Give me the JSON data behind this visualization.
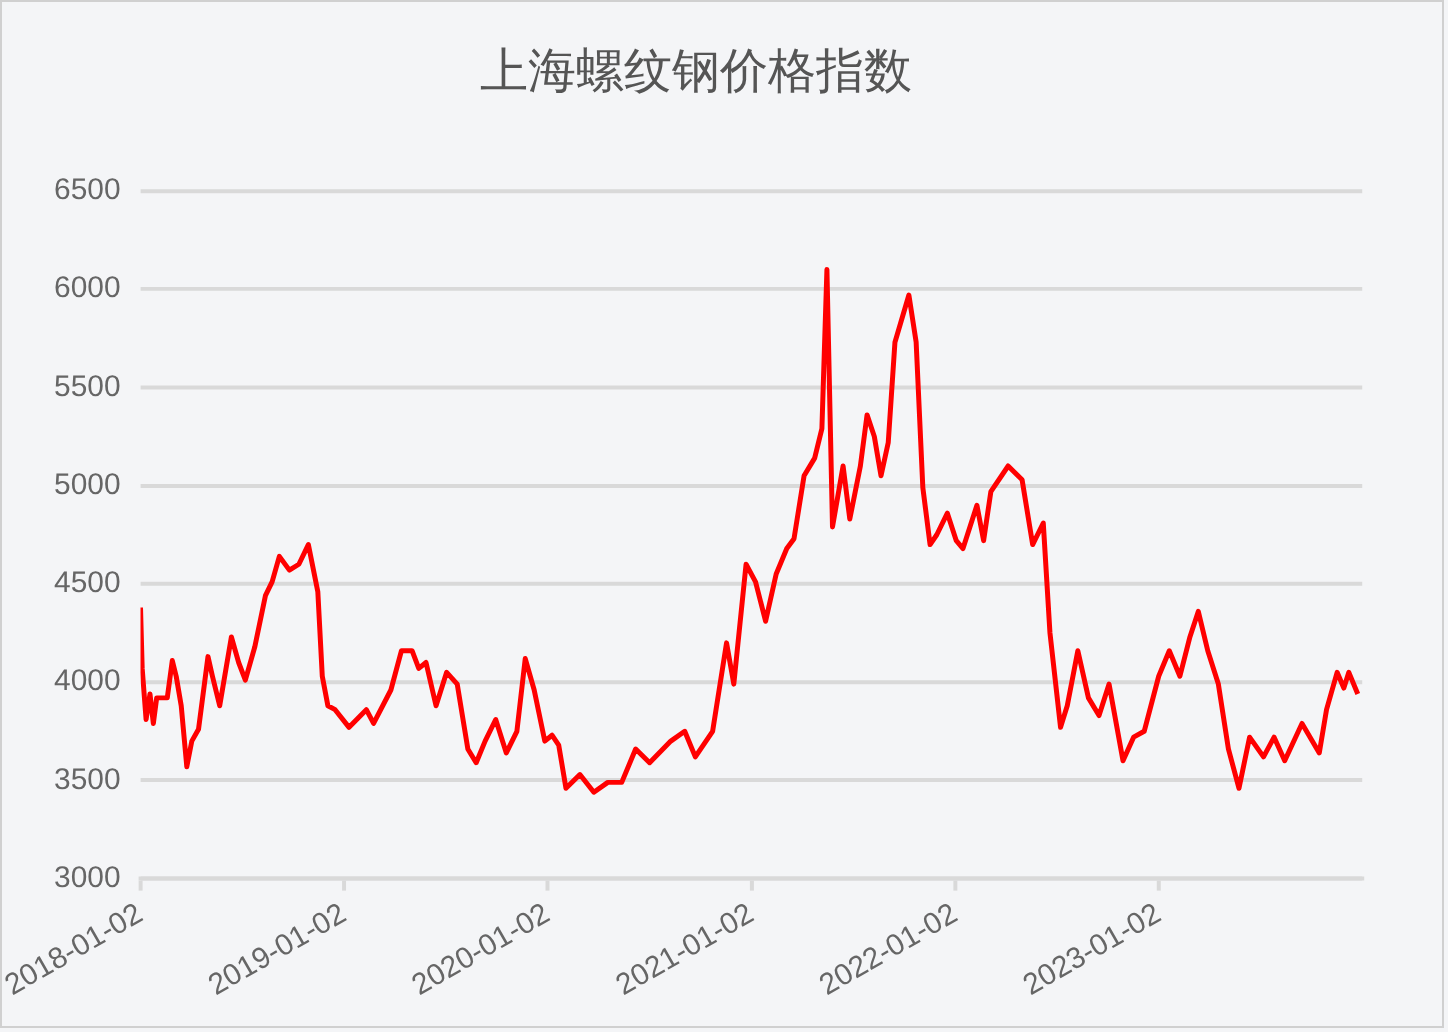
{
  "chart_data": {
    "type": "line",
    "title": "上海螺纹钢价格指数",
    "x": [
      "2018-01-02",
      "2018-01-05",
      "2018-01-12",
      "2018-01-19",
      "2018-01-25",
      "2018-01-31",
      "2018-02-19",
      "2018-02-28",
      "2018-03-07",
      "2018-03-16",
      "2018-03-26",
      "2018-04-04",
      "2018-04-16",
      "2018-05-03",
      "2018-05-11",
      "2018-05-24",
      "2018-06-14",
      "2018-06-27",
      "2018-07-09",
      "2018-07-26",
      "2018-08-14",
      "2018-08-26",
      "2018-09-08",
      "2018-09-26",
      "2018-10-13",
      "2018-10-30",
      "2018-11-16",
      "2018-11-24",
      "2018-12-04",
      "2018-12-17",
      "2019-01-11",
      "2019-02-11",
      "2019-02-24",
      "2019-03-27",
      "2019-04-15",
      "2019-05-04",
      "2019-05-16",
      "2019-05-29",
      "2019-06-16",
      "2019-07-05",
      "2019-07-24",
      "2019-08-12",
      "2019-08-27",
      "2019-09-12",
      "2019-10-01",
      "2019-10-20",
      "2019-11-08",
      "2019-11-23",
      "2019-12-09",
      "2019-12-28",
      "2020-01-10",
      "2020-01-22",
      "2020-02-04",
      "2020-02-29",
      "2020-03-25",
      "2020-04-19",
      "2020-05-14",
      "2020-06-08",
      "2020-07-03",
      "2020-08-10",
      "2020-09-04",
      "2020-09-23",
      "2020-10-24",
      "2020-11-18",
      "2020-12-01",
      "2020-12-23",
      "2021-01-09",
      "2021-01-27",
      "2021-02-15",
      "2021-03-06",
      "2021-03-19",
      "2021-04-06",
      "2021-04-25",
      "2021-05-08",
      "2021-05-17",
      "2021-05-27",
      "2021-06-15",
      "2021-06-27",
      "2021-07-16",
      "2021-07-28",
      "2021-08-10",
      "2021-08-22",
      "2021-09-04",
      "2021-09-16",
      "2021-10-11",
      "2021-10-24",
      "2021-11-05",
      "2021-11-18",
      "2021-11-30",
      "2021-12-19",
      "2022-01-04",
      "2022-01-16",
      "2022-02-10",
      "2022-02-22",
      "2022-03-07",
      "2022-04-07",
      "2022-05-02",
      "2022-05-21",
      "2022-06-09",
      "2022-06-21",
      "2022-07-10",
      "2022-07-22",
      "2022-08-10",
      "2022-08-29",
      "2022-09-17",
      "2022-10-05",
      "2022-10-30",
      "2022-11-18",
      "2022-12-07",
      "2023-01-02",
      "2023-01-21",
      "2023-02-09",
      "2023-02-27",
      "2023-03-14",
      "2023-03-31",
      "2023-04-19",
      "2023-05-07",
      "2023-05-26",
      "2023-06-14",
      "2023-07-09",
      "2023-07-28",
      "2023-08-16",
      "2023-09-16",
      "2023-10-17",
      "2023-10-30",
      "2023-11-18",
      "2023-11-30",
      "2023-12-09",
      "2023-12-25"
    ],
    "series": [
      {
        "color": "#ff0000",
        "values": [
          4380,
          4070,
          3810,
          3940,
          3790,
          3920,
          3920,
          4110,
          4030,
          3880,
          3570,
          3700,
          3760,
          4130,
          4030,
          3880,
          4230,
          4100,
          4010,
          4180,
          4440,
          4510,
          4640,
          4570,
          4600,
          4700,
          4460,
          4030,
          3880,
          3860,
          3770,
          3860,
          3790,
          3960,
          4160,
          4160,
          4070,
          4100,
          3880,
          4050,
          3990,
          3660,
          3590,
          3700,
          3810,
          3640,
          3750,
          4120,
          3960,
          3700,
          3730,
          3680,
          3460,
          3530,
          3440,
          3490,
          3490,
          3660,
          3590,
          3700,
          3750,
          3620,
          3750,
          4200,
          3990,
          4600,
          4510,
          4310,
          4550,
          4680,
          4730,
          5050,
          5140,
          5290,
          6100,
          4790,
          5100,
          4830,
          5100,
          5360,
          5250,
          5050,
          5220,
          5730,
          5970,
          5730,
          4990,
          4700,
          4750,
          4860,
          4720,
          4680,
          4900,
          4720,
          4970,
          5100,
          5030,
          4700,
          4810,
          4250,
          3770,
          3880,
          4160,
          3920,
          3830,
          3990,
          3600,
          3720,
          3750,
          4030,
          4160,
          4030,
          4230,
          4360,
          4160,
          3990,
          3660,
          3460,
          3720,
          3620,
          3720,
          3600,
          3790,
          3640,
          3860,
          4050,
          3970,
          4050,
          3940
        ]
      }
    ],
    "xlim": [
      "2018-01-02",
      "2024-01-02"
    ],
    "xticks": [
      "2018-01-02",
      "2019-01-02",
      "2020-01-02",
      "2021-01-02",
      "2022-01-02",
      "2023-01-02"
    ],
    "ylim": [
      3000,
      6500
    ],
    "yticks": [
      3000,
      3500,
      4000,
      4500,
      5000,
      5500,
      6000,
      6500
    ],
    "grid": "y",
    "legend": false,
    "marker": "none",
    "line_style": "solid"
  }
}
